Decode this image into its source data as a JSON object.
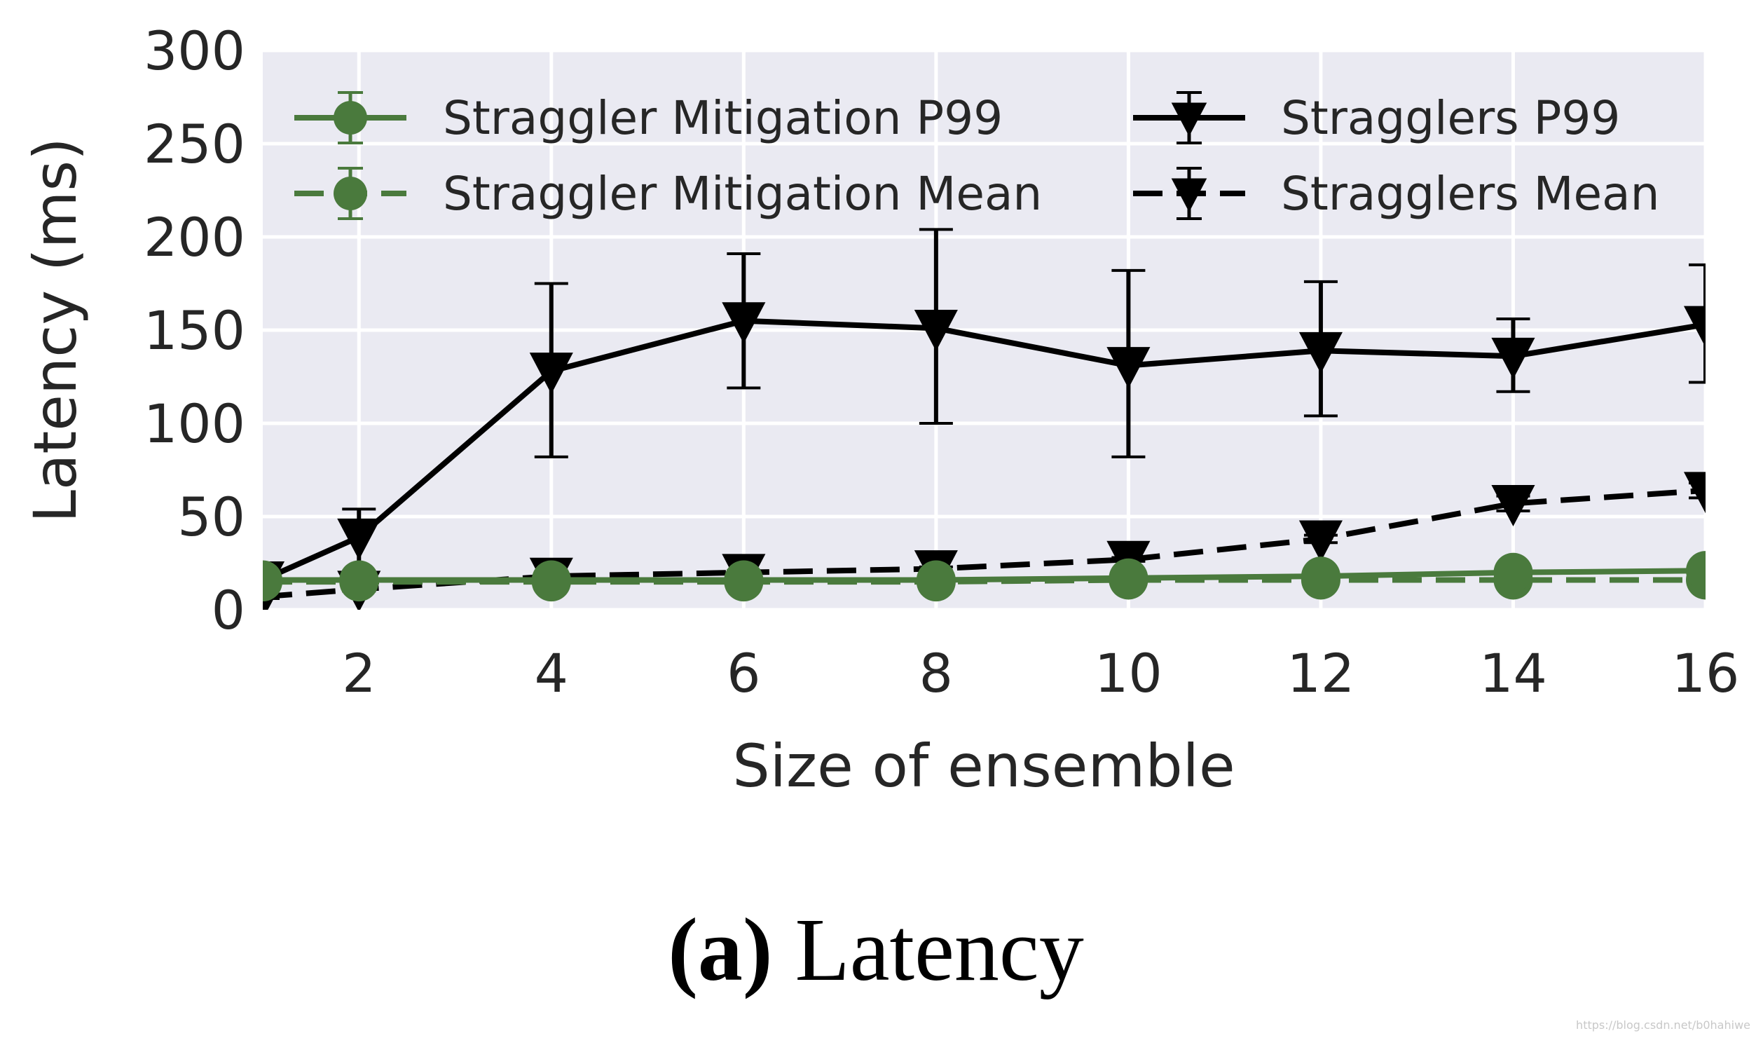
{
  "chart_data": {
    "type": "line",
    "x": [
      1,
      2,
      4,
      6,
      8,
      10,
      12,
      14,
      16
    ],
    "xlabel": "Size of ensemble",
    "ylabel": "Latency (ms)",
    "xlim": [
      1,
      16
    ],
    "ylim": [
      0,
      300
    ],
    "xticks": [
      "2",
      "4",
      "6",
      "8",
      "10",
      "12",
      "14",
      "16"
    ],
    "yticks": [
      "0",
      "50",
      "100",
      "150",
      "200",
      "250",
      "300"
    ],
    "grid": true,
    "legend_position": "top",
    "colors": {
      "mitigation": "#4a7a3d",
      "stragglers": "#000000",
      "background": "#eaeaf2",
      "grid": "#ffffff"
    },
    "series": [
      {
        "name": "Straggler Mitigation P99",
        "marker": "circle",
        "line": "solid",
        "color": "#4a7a3d",
        "values": [
          16,
          16,
          16,
          16,
          16,
          17,
          18,
          20,
          21
        ],
        "err_low": [
          1,
          1,
          1,
          1,
          1,
          1,
          1,
          1,
          1
        ],
        "err_high": [
          1,
          1,
          1,
          1,
          1,
          1,
          1,
          1,
          1
        ]
      },
      {
        "name": "Straggler Mitigation Mean",
        "marker": "circle",
        "line": "dashed",
        "color": "#4a7a3d",
        "values": [
          15,
          15,
          15,
          15,
          15,
          16,
          16,
          16,
          16
        ],
        "err_low": [
          1,
          1,
          1,
          1,
          1,
          1,
          1,
          1,
          1
        ],
        "err_high": [
          1,
          1,
          1,
          1,
          1,
          1,
          1,
          1,
          1
        ]
      },
      {
        "name": "Stragglers P99",
        "marker": "triangle-down",
        "line": "solid",
        "color": "#000000",
        "values": [
          16,
          39,
          128,
          155,
          151,
          131,
          139,
          136,
          153
        ],
        "err_low": [
          3,
          23,
          46,
          36,
          51,
          49,
          35,
          19,
          31
        ],
        "err_high": [
          3,
          15,
          47,
          36,
          53,
          51,
          37,
          20,
          32
        ]
      },
      {
        "name": "Stragglers Mean",
        "marker": "triangle-down",
        "line": "dashed",
        "color": "#000000",
        "values": [
          7,
          11,
          18,
          20,
          22,
          27,
          38,
          57,
          64
        ],
        "err_low": [
          1,
          1,
          1,
          1,
          1,
          1,
          2,
          4,
          4
        ],
        "err_high": [
          1,
          1,
          1,
          1,
          1,
          1,
          2,
          4,
          4
        ]
      }
    ]
  },
  "caption": {
    "prefix": "(a)",
    "text": " Latency"
  },
  "watermark": "https://blog.csdn.net/b0hahiwe"
}
